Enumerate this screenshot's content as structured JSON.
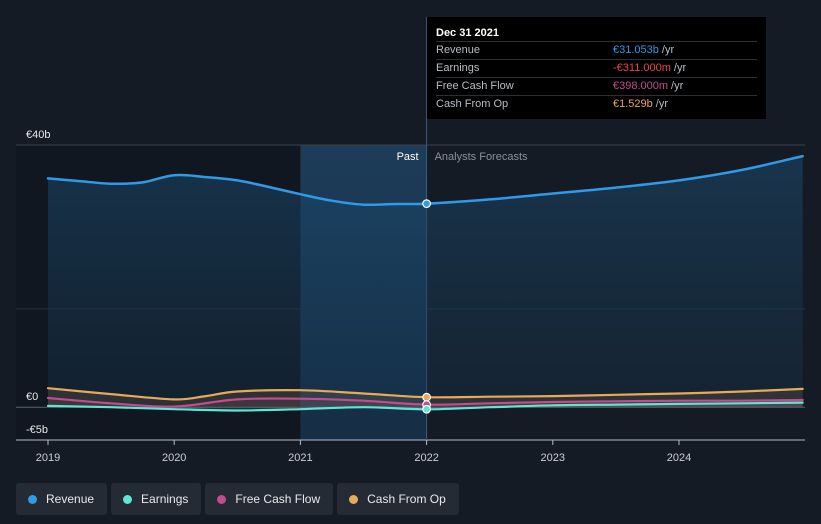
{
  "chart_data": {
    "type": "line",
    "x_ticks": [
      "2019",
      "2020",
      "2021",
      "2022",
      "2023",
      "2024"
    ],
    "y_ticks": [
      {
        "value": 40,
        "label": "€40b"
      },
      {
        "value": 0,
        "label": "€0"
      },
      {
        "value": -5,
        "label": "-€5b"
      }
    ],
    "ylim": [
      -5,
      40
    ],
    "xlim": [
      2018.75,
      2024.98
    ],
    "divider_x": 2022.0,
    "past_label": "Past",
    "forecast_label": "Analysts Forecasts",
    "series": [
      {
        "name": "Revenue",
        "color": "#2f9ae8",
        "x": [
          2019.0,
          2019.25,
          2019.5,
          2019.75,
          2020.0,
          2020.25,
          2020.5,
          2020.75,
          2021.0,
          2021.25,
          2021.5,
          2021.75,
          2022.0,
          2022.5,
          2023.0,
          2023.5,
          2024.0,
          2024.5,
          2024.98
        ],
        "y": [
          34.9,
          34.5,
          34.1,
          34.3,
          35.4,
          35.1,
          34.6,
          33.6,
          32.5,
          31.5,
          30.9,
          31.0,
          31.05,
          31.7,
          32.6,
          33.5,
          34.6,
          36.2,
          38.3
        ]
      },
      {
        "name": "Earnings",
        "color": "#5ee6d3",
        "x": [
          2019.0,
          2019.5,
          2020.0,
          2020.5,
          2021.0,
          2021.5,
          2022.0,
          2022.5,
          2023.0,
          2023.5,
          2024.0,
          2024.5,
          2024.98
        ],
        "y": [
          0.2,
          0.0,
          -0.3,
          -0.5,
          -0.3,
          0.0,
          -0.31,
          0.0,
          0.3,
          0.4,
          0.5,
          0.6,
          0.7
        ]
      },
      {
        "name": "Free Cash Flow",
        "color": "#c24d8e",
        "x": [
          2019.0,
          2019.5,
          2020.0,
          2020.5,
          2021.0,
          2021.5,
          2022.0,
          2022.5,
          2023.0,
          2023.5,
          2024.0,
          2024.5,
          2024.98
        ],
        "y": [
          1.4,
          0.6,
          0.1,
          1.2,
          1.3,
          1.0,
          0.398,
          0.6,
          0.8,
          0.9,
          1.0,
          1.0,
          1.1
        ]
      },
      {
        "name": "Cash From Op",
        "color": "#e8a95b",
        "x": [
          2019.0,
          2019.5,
          2020.0,
          2020.25,
          2020.5,
          2021.0,
          2021.5,
          2022.0,
          2022.5,
          2023.0,
          2023.5,
          2024.0,
          2024.5,
          2024.98
        ],
        "y": [
          2.9,
          2.0,
          1.2,
          1.7,
          2.4,
          2.6,
          2.1,
          1.529,
          1.6,
          1.7,
          1.9,
          2.1,
          2.4,
          2.8
        ]
      }
    ],
    "highlight_index_x": 2022.0,
    "legend_position": "bottom-left"
  },
  "tooltip": {
    "date": "Dec 31 2021",
    "unit": "/yr",
    "rows": [
      {
        "label": "Revenue",
        "value": "€31.053b",
        "color": "#2f9ae8"
      },
      {
        "label": "Earnings",
        "value": "-€311.000m",
        "color": "#f0434d"
      },
      {
        "label": "Free Cash Flow",
        "value": "€398.000m",
        "color": "#c24d8e"
      },
      {
        "label": "Cash From Op",
        "value": "€1.529b",
        "color": "#e8a95b"
      }
    ]
  },
  "legend": [
    {
      "label": "Revenue",
      "color": "#2f9ae8"
    },
    {
      "label": "Earnings",
      "color": "#5ee6d3"
    },
    {
      "label": "Free Cash Flow",
      "color": "#c24d8e"
    },
    {
      "label": "Cash From Op",
      "color": "#e8a95b"
    }
  ]
}
